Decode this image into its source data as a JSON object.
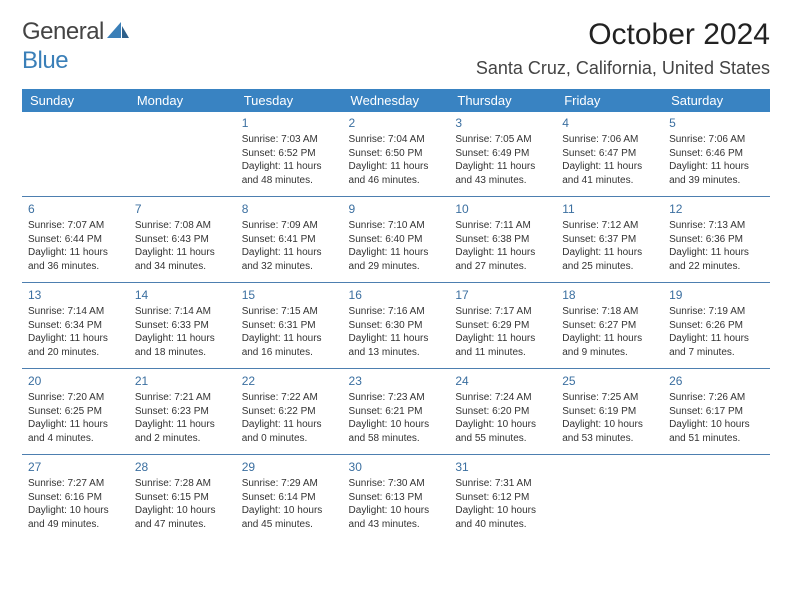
{
  "logo": {
    "line1": "General",
    "line2": "Blue"
  },
  "title": "October 2024",
  "location": "Santa Cruz, California, United States",
  "colors": {
    "header_bg": "#3983c2",
    "header_text": "#ffffff",
    "divider": "#4d7fb0",
    "daynum": "#3b6fa0",
    "logo_blue": "#3a7fb8"
  },
  "weekdays": [
    "Sunday",
    "Monday",
    "Tuesday",
    "Wednesday",
    "Thursday",
    "Friday",
    "Saturday"
  ],
  "weeks": [
    [
      null,
      null,
      {
        "n": "1",
        "sr": "Sunrise: 7:03 AM",
        "ss": "Sunset: 6:52 PM",
        "d1": "Daylight: 11 hours",
        "d2": "and 48 minutes."
      },
      {
        "n": "2",
        "sr": "Sunrise: 7:04 AM",
        "ss": "Sunset: 6:50 PM",
        "d1": "Daylight: 11 hours",
        "d2": "and 46 minutes."
      },
      {
        "n": "3",
        "sr": "Sunrise: 7:05 AM",
        "ss": "Sunset: 6:49 PM",
        "d1": "Daylight: 11 hours",
        "d2": "and 43 minutes."
      },
      {
        "n": "4",
        "sr": "Sunrise: 7:06 AM",
        "ss": "Sunset: 6:47 PM",
        "d1": "Daylight: 11 hours",
        "d2": "and 41 minutes."
      },
      {
        "n": "5",
        "sr": "Sunrise: 7:06 AM",
        "ss": "Sunset: 6:46 PM",
        "d1": "Daylight: 11 hours",
        "d2": "and 39 minutes."
      }
    ],
    [
      {
        "n": "6",
        "sr": "Sunrise: 7:07 AM",
        "ss": "Sunset: 6:44 PM",
        "d1": "Daylight: 11 hours",
        "d2": "and 36 minutes."
      },
      {
        "n": "7",
        "sr": "Sunrise: 7:08 AM",
        "ss": "Sunset: 6:43 PM",
        "d1": "Daylight: 11 hours",
        "d2": "and 34 minutes."
      },
      {
        "n": "8",
        "sr": "Sunrise: 7:09 AM",
        "ss": "Sunset: 6:41 PM",
        "d1": "Daylight: 11 hours",
        "d2": "and 32 minutes."
      },
      {
        "n": "9",
        "sr": "Sunrise: 7:10 AM",
        "ss": "Sunset: 6:40 PM",
        "d1": "Daylight: 11 hours",
        "d2": "and 29 minutes."
      },
      {
        "n": "10",
        "sr": "Sunrise: 7:11 AM",
        "ss": "Sunset: 6:38 PM",
        "d1": "Daylight: 11 hours",
        "d2": "and 27 minutes."
      },
      {
        "n": "11",
        "sr": "Sunrise: 7:12 AM",
        "ss": "Sunset: 6:37 PM",
        "d1": "Daylight: 11 hours",
        "d2": "and 25 minutes."
      },
      {
        "n": "12",
        "sr": "Sunrise: 7:13 AM",
        "ss": "Sunset: 6:36 PM",
        "d1": "Daylight: 11 hours",
        "d2": "and 22 minutes."
      }
    ],
    [
      {
        "n": "13",
        "sr": "Sunrise: 7:14 AM",
        "ss": "Sunset: 6:34 PM",
        "d1": "Daylight: 11 hours",
        "d2": "and 20 minutes."
      },
      {
        "n": "14",
        "sr": "Sunrise: 7:14 AM",
        "ss": "Sunset: 6:33 PM",
        "d1": "Daylight: 11 hours",
        "d2": "and 18 minutes."
      },
      {
        "n": "15",
        "sr": "Sunrise: 7:15 AM",
        "ss": "Sunset: 6:31 PM",
        "d1": "Daylight: 11 hours",
        "d2": "and 16 minutes."
      },
      {
        "n": "16",
        "sr": "Sunrise: 7:16 AM",
        "ss": "Sunset: 6:30 PM",
        "d1": "Daylight: 11 hours",
        "d2": "and 13 minutes."
      },
      {
        "n": "17",
        "sr": "Sunrise: 7:17 AM",
        "ss": "Sunset: 6:29 PM",
        "d1": "Daylight: 11 hours",
        "d2": "and 11 minutes."
      },
      {
        "n": "18",
        "sr": "Sunrise: 7:18 AM",
        "ss": "Sunset: 6:27 PM",
        "d1": "Daylight: 11 hours",
        "d2": "and 9 minutes."
      },
      {
        "n": "19",
        "sr": "Sunrise: 7:19 AM",
        "ss": "Sunset: 6:26 PM",
        "d1": "Daylight: 11 hours",
        "d2": "and 7 minutes."
      }
    ],
    [
      {
        "n": "20",
        "sr": "Sunrise: 7:20 AM",
        "ss": "Sunset: 6:25 PM",
        "d1": "Daylight: 11 hours",
        "d2": "and 4 minutes."
      },
      {
        "n": "21",
        "sr": "Sunrise: 7:21 AM",
        "ss": "Sunset: 6:23 PM",
        "d1": "Daylight: 11 hours",
        "d2": "and 2 minutes."
      },
      {
        "n": "22",
        "sr": "Sunrise: 7:22 AM",
        "ss": "Sunset: 6:22 PM",
        "d1": "Daylight: 11 hours",
        "d2": "and 0 minutes."
      },
      {
        "n": "23",
        "sr": "Sunrise: 7:23 AM",
        "ss": "Sunset: 6:21 PM",
        "d1": "Daylight: 10 hours",
        "d2": "and 58 minutes."
      },
      {
        "n": "24",
        "sr": "Sunrise: 7:24 AM",
        "ss": "Sunset: 6:20 PM",
        "d1": "Daylight: 10 hours",
        "d2": "and 55 minutes."
      },
      {
        "n": "25",
        "sr": "Sunrise: 7:25 AM",
        "ss": "Sunset: 6:19 PM",
        "d1": "Daylight: 10 hours",
        "d2": "and 53 minutes."
      },
      {
        "n": "26",
        "sr": "Sunrise: 7:26 AM",
        "ss": "Sunset: 6:17 PM",
        "d1": "Daylight: 10 hours",
        "d2": "and 51 minutes."
      }
    ],
    [
      {
        "n": "27",
        "sr": "Sunrise: 7:27 AM",
        "ss": "Sunset: 6:16 PM",
        "d1": "Daylight: 10 hours",
        "d2": "and 49 minutes."
      },
      {
        "n": "28",
        "sr": "Sunrise: 7:28 AM",
        "ss": "Sunset: 6:15 PM",
        "d1": "Daylight: 10 hours",
        "d2": "and 47 minutes."
      },
      {
        "n": "29",
        "sr": "Sunrise: 7:29 AM",
        "ss": "Sunset: 6:14 PM",
        "d1": "Daylight: 10 hours",
        "d2": "and 45 minutes."
      },
      {
        "n": "30",
        "sr": "Sunrise: 7:30 AM",
        "ss": "Sunset: 6:13 PM",
        "d1": "Daylight: 10 hours",
        "d2": "and 43 minutes."
      },
      {
        "n": "31",
        "sr": "Sunrise: 7:31 AM",
        "ss": "Sunset: 6:12 PM",
        "d1": "Daylight: 10 hours",
        "d2": "and 40 minutes."
      },
      null,
      null
    ]
  ]
}
